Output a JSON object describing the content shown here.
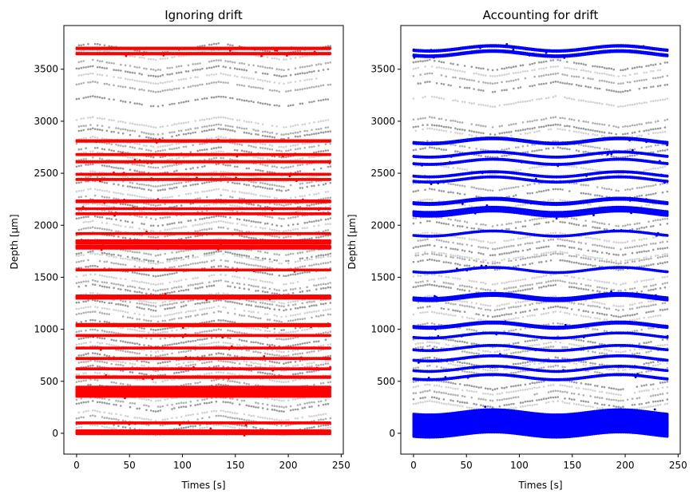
{
  "figure": {
    "background": "#ffffff"
  },
  "chart_data": [
    {
      "type": "scatter",
      "title": "Ignoring drift",
      "xlabel": "Times [s]",
      "ylabel": "Depth [μm]",
      "xlim": [
        -12,
        252
      ],
      "ylim": [
        -200,
        3920
      ],
      "xticks": [
        0,
        50,
        100,
        150,
        200,
        250
      ],
      "yticks": [
        0,
        500,
        1000,
        1500,
        2000,
        2500,
        3000,
        3500
      ],
      "grid": false,
      "time_range": [
        0,
        240
      ],
      "drift_amplitude_um": 50,
      "drift_period_s": 120,
      "background_series": {
        "name": "all spikes",
        "color_light": "#d3d3d3",
        "color_dark": "#999999",
        "drift_shape": "triangular",
        "unit_depths": [
          30,
          60,
          120,
          170,
          260,
          300,
          360,
          420,
          470,
          540,
          600,
          650,
          680,
          720,
          790,
          830,
          880,
          950,
          1010,
          1040,
          1120,
          1170,
          1230,
          1270,
          1300,
          1380,
          1420,
          1480,
          1560,
          1620,
          1680,
          1700,
          1760,
          1820,
          1880,
          1930,
          1990,
          2040,
          2110,
          2160,
          2200,
          2240,
          2300,
          2380,
          2420,
          2470,
          2540,
          2600,
          2660,
          2700,
          2760,
          2800,
          2880,
          2920,
          2990,
          3190,
          3330,
          3410,
          3480,
          3540,
          3640,
          3700
        ]
      },
      "highlight_series": {
        "name": "selected units",
        "color": "#ff0000",
        "drift_corrected": false,
        "bands": [
          {
            "depth": 10,
            "spread": 22
          },
          {
            "depth": 100,
            "spread": 6
          },
          {
            "depth": 400,
            "spread": 60
          },
          {
            "depth": 540,
            "spread": 8
          },
          {
            "depth": 620,
            "spread": 6
          },
          {
            "depth": 720,
            "spread": 6
          },
          {
            "depth": 820,
            "spread": 5
          },
          {
            "depth": 940,
            "spread": 6
          },
          {
            "depth": 1040,
            "spread": 12
          },
          {
            "depth": 1310,
            "spread": 18
          },
          {
            "depth": 1570,
            "spread": 5
          },
          {
            "depth": 1790,
            "spread": 18
          },
          {
            "depth": 1840,
            "spread": 18
          },
          {
            "depth": 1920,
            "spread": 5
          },
          {
            "depth": 2110,
            "spread": 6
          },
          {
            "depth": 2160,
            "spread": 4
          },
          {
            "depth": 2230,
            "spread": 10
          },
          {
            "depth": 2440,
            "spread": 6
          },
          {
            "depth": 2490,
            "spread": 6
          },
          {
            "depth": 2610,
            "spread": 6
          },
          {
            "depth": 2680,
            "spread": 6
          },
          {
            "depth": 2810,
            "spread": 8
          },
          {
            "depth": 3650,
            "spread": 8
          },
          {
            "depth": 3700,
            "spread": 8
          }
        ]
      }
    },
    {
      "type": "scatter",
      "title": "Accounting for drift",
      "xlabel": "Times [s]",
      "ylabel": "Depth [μm]",
      "xlim": [
        -12,
        252
      ],
      "ylim": [
        -200,
        3920
      ],
      "xticks": [
        0,
        50,
        100,
        150,
        200,
        250
      ],
      "yticks": [
        0,
        500,
        1000,
        1500,
        2000,
        2500,
        3000,
        3500
      ],
      "grid": false,
      "time_range": [
        0,
        240
      ],
      "drift_amplitude_um": 50,
      "drift_period_s": 120,
      "background_series": {
        "name": "all spikes",
        "color_light": "#d3d3d3",
        "color_dark": "#999999",
        "drift_shape": "triangular",
        "unit_depths": [
          260,
          300,
          360,
          420,
          470,
          600,
          650,
          680,
          790,
          830,
          880,
          1010,
          1120,
          1170,
          1230,
          1270,
          1380,
          1420,
          1480,
          1620,
          1680,
          1700,
          1760,
          1820,
          1880,
          1990,
          2040,
          2200,
          2300,
          2380,
          2540,
          2700,
          2760,
          2880,
          2920,
          2990,
          3190,
          3330,
          3410,
          3480,
          3540
        ]
      },
      "highlight_series": {
        "name": "selected units",
        "color": "#0000ff",
        "drift_corrected": true,
        "bands": [
          {
            "depth": 40,
            "spread": 70
          },
          {
            "depth": 150,
            "spread": 70
          },
          {
            "depth": 540,
            "spread": 6
          },
          {
            "depth": 620,
            "spread": 5
          },
          {
            "depth": 720,
            "spread": 6
          },
          {
            "depth": 820,
            "spread": 5
          },
          {
            "depth": 940,
            "spread": 5
          },
          {
            "depth": 1040,
            "spread": 12
          },
          {
            "depth": 1310,
            "spread": 18
          },
          {
            "depth": 1570,
            "spread": 5
          },
          {
            "depth": 1920,
            "spread": 5
          },
          {
            "depth": 2130,
            "spread": 28
          },
          {
            "depth": 2230,
            "spread": 12
          },
          {
            "depth": 2440,
            "spread": 6
          },
          {
            "depth": 2490,
            "spread": 6
          },
          {
            "depth": 2610,
            "spread": 6
          },
          {
            "depth": 2680,
            "spread": 6
          },
          {
            "depth": 2810,
            "spread": 10
          },
          {
            "depth": 3650,
            "spread": 10
          },
          {
            "depth": 3700,
            "spread": 8
          }
        ]
      }
    }
  ]
}
